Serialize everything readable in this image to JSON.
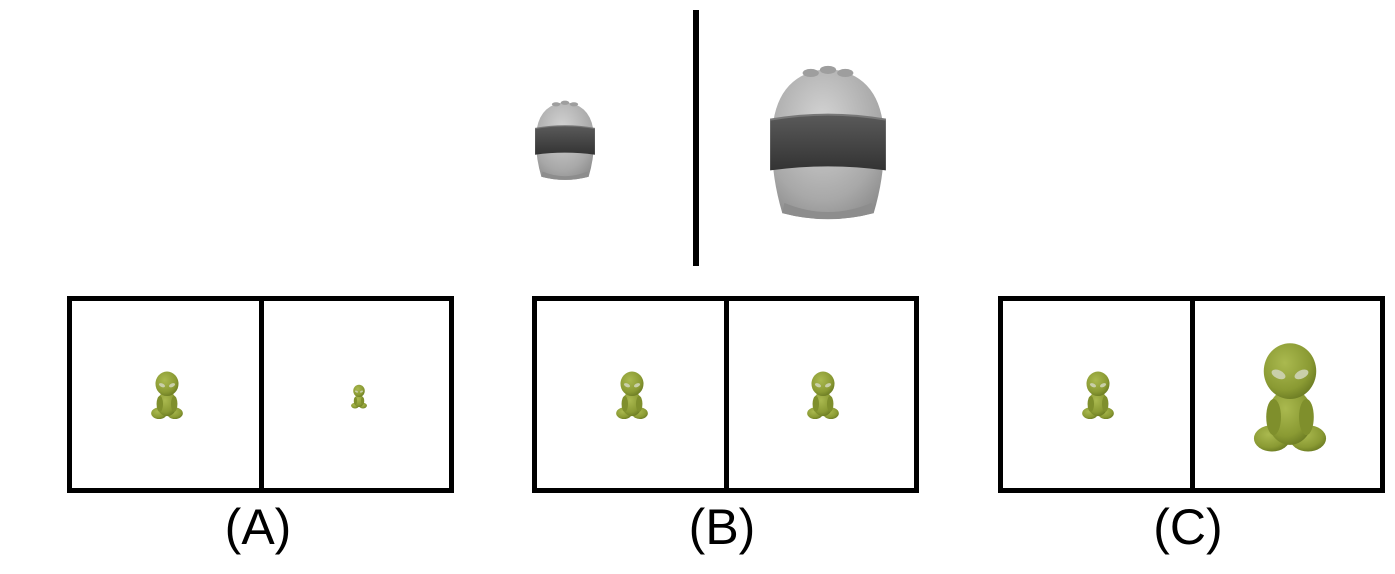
{
  "top_comparison": {
    "left_object": "helmet-small",
    "right_object": "helmet-large"
  },
  "options": [
    {
      "label": "(A)",
      "left_alien": "medium",
      "right_alien": "tiny"
    },
    {
      "label": "(B)",
      "left_alien": "medium",
      "right_alien": "medium"
    },
    {
      "label": "(C)",
      "left_alien": "medium",
      "right_alien": "large"
    }
  ],
  "colors": {
    "alien": "#8fa03a",
    "alien_dark": "#6f7f28",
    "helmet_shell": "#b9b9b9",
    "helmet_visor": "#4a4a4a",
    "frame": "#000000"
  }
}
